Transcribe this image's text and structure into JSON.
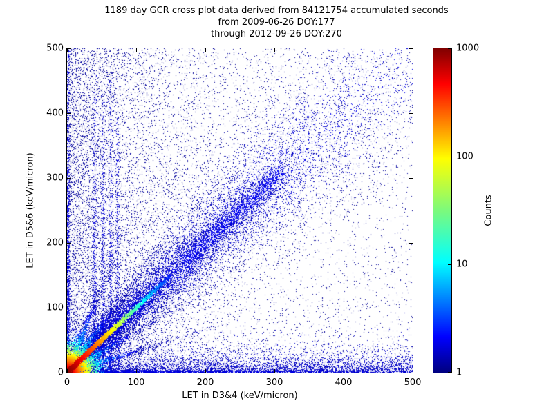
{
  "chart_data": {
    "type": "heatmap",
    "title": "1189 day GCR cross plot data derived from 84121754 accumulated seconds",
    "subtitle1": "from 2009-06-26 DOY:177",
    "subtitle2": "through 2012-09-26 DOY:270",
    "xlabel": "LET in D3&4 (keV/micron)",
    "ylabel": "LET in D5&6 (keV/micron)",
    "xlim": [
      0,
      500
    ],
    "ylim": [
      0,
      500
    ],
    "x_ticks": [
      0,
      100,
      200,
      300,
      400,
      500
    ],
    "y_ticks": [
      0,
      100,
      200,
      300,
      400,
      500
    ],
    "grid": false,
    "legend": "none",
    "colorbar": {
      "label": "Counts",
      "scale": "log",
      "ticks": [
        1,
        10,
        100,
        1000
      ],
      "tick_labels": [
        "1",
        "10",
        "100",
        "1000"
      ],
      "colormap": "jet",
      "stops": [
        {
          "pos": 0.0,
          "color": "#00007f"
        },
        {
          "pos": 0.11,
          "color": "#0000ff"
        },
        {
          "pos": 0.34,
          "color": "#00ffff"
        },
        {
          "pos": 0.5,
          "color": "#7cfa7c"
        },
        {
          "pos": 0.66,
          "color": "#ffff00"
        },
        {
          "pos": 0.89,
          "color": "#ff0000"
        },
        {
          "pos": 1.0,
          "color": "#7f0000"
        }
      ]
    },
    "features": [
      {
        "kind": "uniform",
        "n": 4000,
        "tone": 0.02
      },
      {
        "kind": "expx",
        "n": 8000,
        "scale": 95,
        "tone": 0.03
      },
      {
        "kind": "expy",
        "n": 6000,
        "scale": 13,
        "tone": 0.07
      },
      {
        "kind": "hstreak",
        "n": 1500,
        "y": 1.5,
        "width": 1.2,
        "xscale": 200,
        "xmax": 500,
        "tone": 0.1
      },
      {
        "kind": "vstreak",
        "n": 1600,
        "x": 1.5,
        "width": 1.2,
        "yscale": 250,
        "ymax": 500,
        "tone": 0.1
      },
      {
        "kind": "diag",
        "n": 15000,
        "t_scale": 170,
        "sigma0": 2.0,
        "sigma_k": 0.115,
        "tone": 0.11
      },
      {
        "kind": "diag",
        "n": 2500,
        "t_scale": 400,
        "sigma0": 25,
        "sigma_k": 0.1,
        "tone": 0.05
      },
      {
        "kind": "diagseg",
        "n": 2600,
        "tmin": 170,
        "tmax": 310,
        "sigma": 9,
        "tone": 0.13
      },
      {
        "kind": "ray",
        "n": 1400,
        "slope": 2.6,
        "r_scale": 55,
        "width": 3.0
      },
      {
        "kind": "ray",
        "n": 1600,
        "slope": 1.45,
        "r_scale": 70,
        "width": 3.5
      },
      {
        "kind": "ray",
        "n": 1400,
        "slope": 0.62,
        "r_scale": 60,
        "width": 3.0
      },
      {
        "kind": "ray",
        "n": 1200,
        "slope": 0.33,
        "r_scale": 55,
        "width": 2.5
      },
      {
        "kind": "vstreak",
        "n": 700,
        "x": 40,
        "width": 1.6,
        "yscale": 230,
        "ymax": 460,
        "tone": 0.09
      },
      {
        "kind": "vstreak",
        "n": 600,
        "x": 52,
        "width": 1.6,
        "yscale": 230,
        "ymax": 430,
        "tone": 0.09
      },
      {
        "kind": "vstreak",
        "n": 650,
        "x": 63,
        "width": 1.6,
        "yscale": 230,
        "ymax": 460,
        "tone": 0.09
      },
      {
        "kind": "vstreak",
        "n": 500,
        "x": 73,
        "width": 1.6,
        "yscale": 230,
        "ymax": 420,
        "tone": 0.09
      },
      {
        "kind": "core",
        "n": 9000,
        "r_scale": 16
      },
      {
        "kind": "hotdiag",
        "n": 7000,
        "t_scale": 55,
        "t_max": 150,
        "width": 1.6
      }
    ]
  }
}
